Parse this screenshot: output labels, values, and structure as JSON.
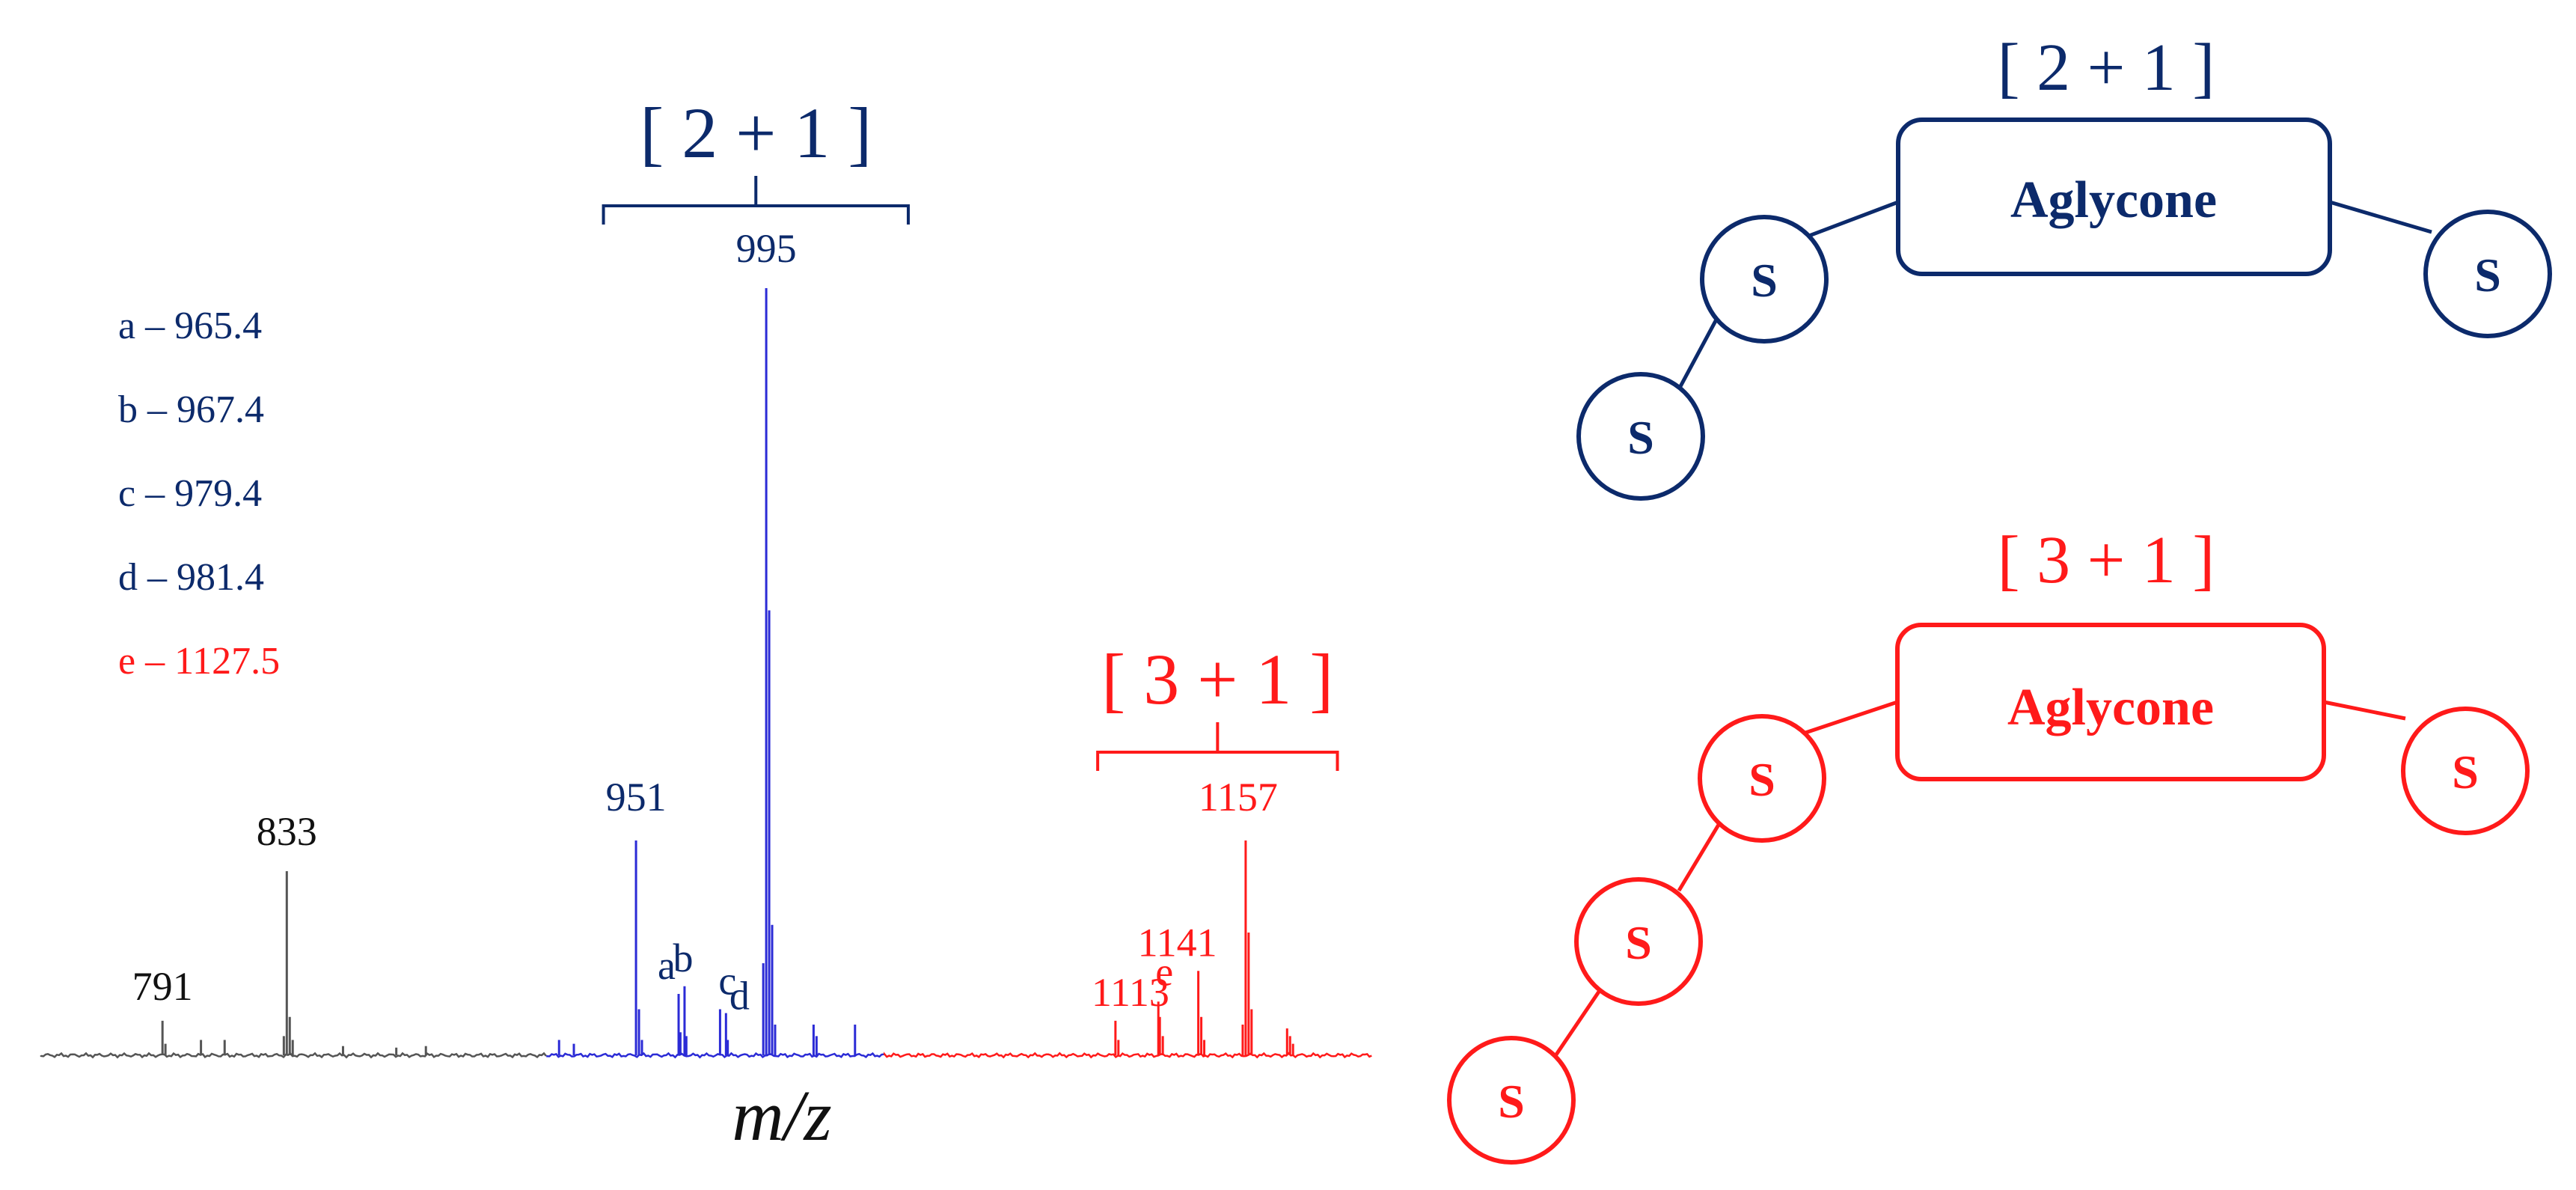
{
  "colors": {
    "navy": "#0c2a6b",
    "blue": "#2b2bd6",
    "red": "#ff1a1a",
    "gray": "#555555",
    "black": "#111111"
  },
  "chart_data": {
    "type": "line",
    "title": "",
    "xlabel": "m/z",
    "ylabel": "",
    "xlim": [
      750,
      1200
    ],
    "ylim": [
      0,
      100
    ],
    "grid": false,
    "legend_position": "top-left",
    "legend": [
      {
        "key": "a",
        "text": "a – 965.4",
        "color": "#0c2a6b"
      },
      {
        "key": "b",
        "text": "b – 967.4",
        "color": "#0c2a6b"
      },
      {
        "key": "c",
        "text": "c – 979.4",
        "color": "#0c2a6b"
      },
      {
        "key": "d",
        "text": "d – 981.4",
        "color": "#0c2a6b"
      },
      {
        "key": "e",
        "text": "e – 1127.5",
        "color": "#ff1a1a"
      }
    ],
    "series": [
      {
        "color": "#555555",
        "range": [
          750,
          921
        ],
        "peaks": [
          {
            "x": 791,
            "y": 4.5
          },
          {
            "x": 792,
            "y": 1.5
          },
          {
            "x": 804,
            "y": 2
          },
          {
            "x": 812,
            "y": 2
          },
          {
            "x": 832,
            "y": 2.5
          },
          {
            "x": 833,
            "y": 24
          },
          {
            "x": 834,
            "y": 5
          },
          {
            "x": 835,
            "y": 2
          },
          {
            "x": 852,
            "y": 1.2
          },
          {
            "x": 870,
            "y": 1
          },
          {
            "x": 880,
            "y": 1.2
          }
        ]
      },
      {
        "color": "#2b2bd6",
        "range": [
          921,
          1035
        ],
        "peaks": [
          {
            "x": 925,
            "y": 2
          },
          {
            "x": 930,
            "y": 1.5
          },
          {
            "x": 951,
            "y": 28
          },
          {
            "x": 952,
            "y": 6
          },
          {
            "x": 953,
            "y": 2
          },
          {
            "x": 965.4,
            "y": 8
          },
          {
            "x": 966,
            "y": 3
          },
          {
            "x": 967.4,
            "y": 9
          },
          {
            "x": 968,
            "y": 2.5
          },
          {
            "x": 979.4,
            "y": 6
          },
          {
            "x": 981.4,
            "y": 5.5
          },
          {
            "x": 982,
            "y": 2
          },
          {
            "x": 994,
            "y": 12
          },
          {
            "x": 995,
            "y": 100
          },
          {
            "x": 996,
            "y": 58
          },
          {
            "x": 997,
            "y": 17
          },
          {
            "x": 998,
            "y": 4
          },
          {
            "x": 1011,
            "y": 4
          },
          {
            "x": 1012,
            "y": 2.5
          },
          {
            "x": 1025,
            "y": 4
          }
        ]
      },
      {
        "color": "#ff1a1a",
        "range": [
          1035,
          1200
        ],
        "peaks": [
          {
            "x": 1113,
            "y": 4.5
          },
          {
            "x": 1114,
            "y": 2
          },
          {
            "x": 1127.5,
            "y": 7
          },
          {
            "x": 1128,
            "y": 5
          },
          {
            "x": 1129,
            "y": 2.5
          },
          {
            "x": 1141,
            "y": 11
          },
          {
            "x": 1142,
            "y": 5
          },
          {
            "x": 1143,
            "y": 2
          },
          {
            "x": 1156,
            "y": 4
          },
          {
            "x": 1157,
            "y": 28
          },
          {
            "x": 1158,
            "y": 16
          },
          {
            "x": 1159,
            "y": 6
          },
          {
            "x": 1171,
            "y": 3.5
          },
          {
            "x": 1172,
            "y": 2.5
          },
          {
            "x": 1173,
            "y": 1.5
          }
        ]
      }
    ],
    "peak_labels": [
      {
        "x": 791,
        "y": 4.5,
        "text": "791",
        "color": "#111111"
      },
      {
        "x": 833,
        "y": 24,
        "text": "833",
        "color": "#111111"
      },
      {
        "x": 951,
        "y": 28,
        "text": "951",
        "color": "#0c2a6b"
      },
      {
        "x": 995,
        "y": 100,
        "text": "995",
        "color": "#0c2a6b"
      },
      {
        "x": 965.4,
        "y": 8,
        "text": "a",
        "color": "#0c2a6b"
      },
      {
        "x": 967.4,
        "y": 9,
        "text": "b",
        "color": "#0c2a6b"
      },
      {
        "x": 979.4,
        "y": 6,
        "text": "c",
        "color": "#0c2a6b"
      },
      {
        "x": 981.4,
        "y": 5.5,
        "text": "d",
        "color": "#0c2a6b"
      },
      {
        "x": 1113,
        "y": 4.5,
        "text": "1113",
        "color": "#ff1a1a"
      },
      {
        "x": 1127.5,
        "y": 7,
        "text": "e",
        "color": "#ff1a1a"
      },
      {
        "x": 1141,
        "y": 11,
        "text": "1141",
        "color": "#ff1a1a"
      },
      {
        "x": 1157,
        "y": 28,
        "text": "1157",
        "color": "#ff1a1a"
      }
    ],
    "brackets": [
      {
        "label": "[ 2 + 1 ]",
        "x_range": [
          940,
          1043
        ],
        "color": "#0c2a6b"
      },
      {
        "label": "[ 3 + 1 ]",
        "x_range": [
          1107,
          1188
        ],
        "color": "#ff1a1a"
      }
    ]
  },
  "diagrams": [
    {
      "title": "[ 2 + 1 ]",
      "color": "#0c2a6b",
      "core_label": "Aglycone",
      "sugar_labels": [
        "S",
        "S",
        "S"
      ]
    },
    {
      "title": "[ 3 + 1 ]",
      "color": "#ff1a1a",
      "core_label": "Aglycone",
      "sugar_labels": [
        "S",
        "S",
        "S",
        "S"
      ]
    }
  ]
}
